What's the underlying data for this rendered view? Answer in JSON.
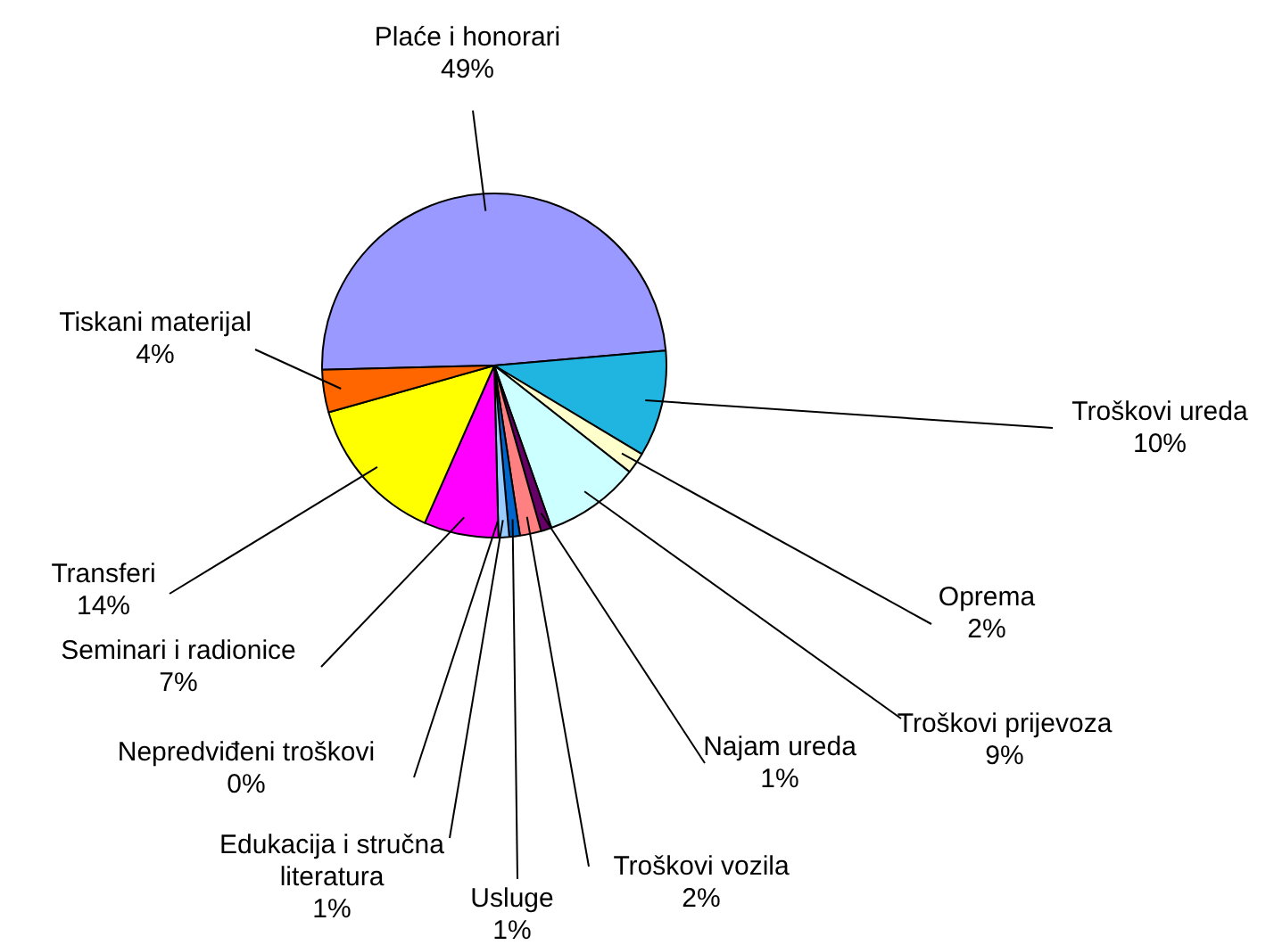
{
  "chart_data": {
    "type": "pie",
    "categories": [
      "Plaće i honorari",
      "Troškovi ureda",
      "Oprema",
      "Troškovi prijevoza",
      "Najam ureda",
      "Troškovi vozila",
      "Usluge",
      "Edukacija i stručna literatura",
      "Nepredviđeni troškovi",
      "Seminari i radionice",
      "Transferi",
      "Tiskani materijal"
    ],
    "values": [
      49,
      10,
      2,
      9,
      1,
      2,
      1,
      1,
      0,
      7,
      14,
      4
    ],
    "value_labels": [
      "49%",
      "10%",
      "2%",
      "9%",
      "1%",
      "2%",
      "1%",
      "1%",
      "0%",
      "7%",
      "14%",
      "4%"
    ],
    "colors": [
      "#9999ff",
      "#1fb5e0",
      "#ffffcc",
      "#ccffff",
      "#660066",
      "#ff8080",
      "#0066cc",
      "#99ccff",
      "#000080",
      "#ff00ff",
      "#ffff00",
      "#ff6600"
    ],
    "legend": false
  }
}
